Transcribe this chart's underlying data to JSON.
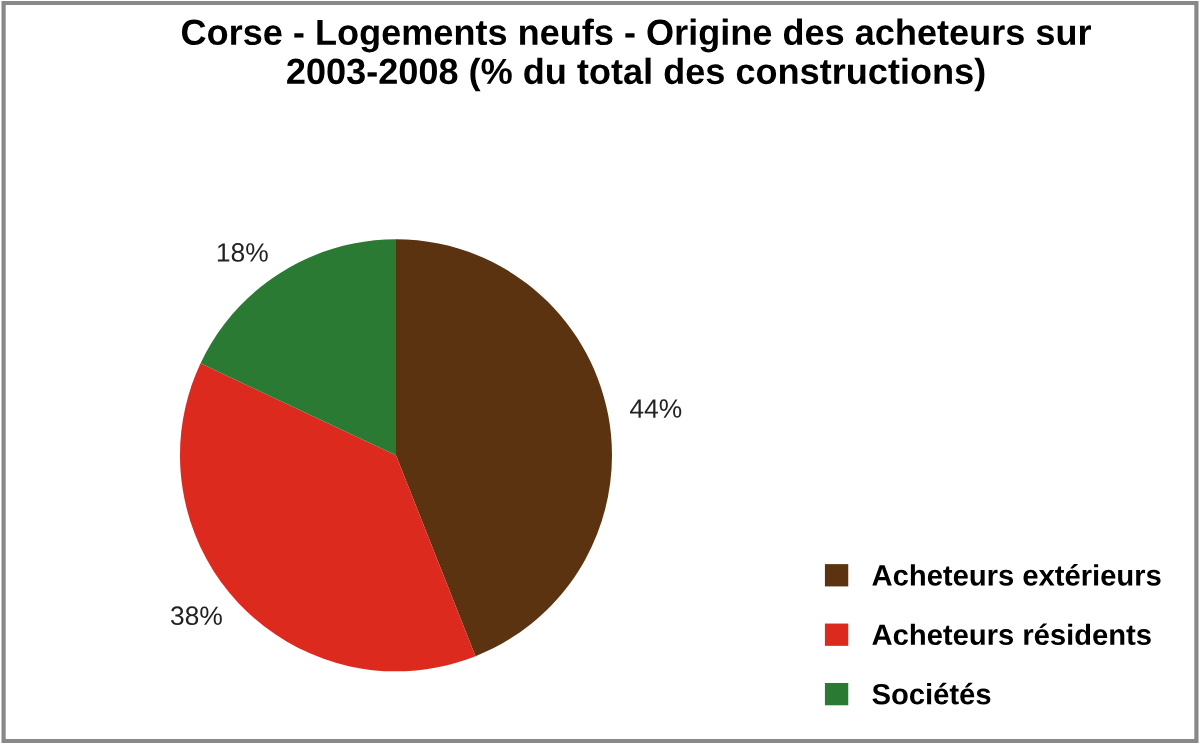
{
  "chart_data": {
    "type": "pie",
    "title": "Corse - Logements neufs - Origine des acheteurs sur 2003-2008 (% du total des constructions)",
    "categories": [
      "Acheteurs extérieurs",
      "Acheteurs résidents",
      "Sociétés"
    ],
    "values": [
      44,
      38,
      18
    ],
    "colors": [
      "#5c3310",
      "#dd2a1f",
      "#2a7a34"
    ],
    "value_labels": [
      "44%",
      "38%",
      "18%"
    ],
    "legend": "bottom right"
  }
}
